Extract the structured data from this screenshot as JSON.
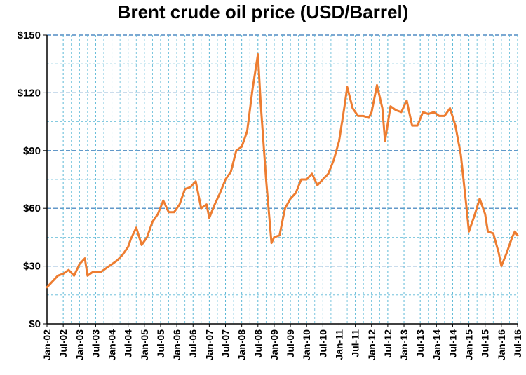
{
  "chart_data": {
    "type": "line",
    "title": "Brent crude oil price (USD/Barrel)",
    "xlabel": "",
    "ylabel": "",
    "x_range": [
      "2002-01",
      "2016-07"
    ],
    "ylim": [
      0,
      150
    ],
    "y_ticks": [
      0,
      30,
      60,
      90,
      120,
      150
    ],
    "y_tick_labels": [
      "$0",
      "$30",
      "$60",
      "$90",
      "$120",
      "$150"
    ],
    "x_tick_labels": [
      "Jan-02",
      "Jul-02",
      "Jan-03",
      "Jul-03",
      "Jan-04",
      "Jul-04",
      "Jan-05",
      "Jul-05",
      "Jan-06",
      "Jul-06",
      "Jan-07",
      "Jul-07",
      "Jan-08",
      "Jul-08",
      "Jan-09",
      "Jul-09",
      "Jan-10",
      "Jul-10",
      "Jan-11",
      "Jul-11",
      "Jan-12",
      "Jul-12",
      "Jan-13",
      "Jul-13",
      "Jan-14",
      "Jul-14",
      "Jan-15",
      "Jul-15",
      "Jan-16",
      "Jul-16"
    ],
    "grid": true,
    "colors": {
      "line": "#ED7D31",
      "major_grid": "#2E75B6",
      "minor_grid": "#5BB8D6",
      "axis": "#000000"
    },
    "series": [
      {
        "name": "",
        "x": [
          "2002-01",
          "2002-03",
          "2002-05",
          "2002-07",
          "2002-09",
          "2002-11",
          "2003-01",
          "2003-03",
          "2003-04",
          "2003-06",
          "2003-09",
          "2003-11",
          "2004-01",
          "2004-03",
          "2004-05",
          "2004-07",
          "2004-08",
          "2004-10",
          "2004-12",
          "2005-02",
          "2005-04",
          "2005-06",
          "2005-08",
          "2005-10",
          "2005-12",
          "2006-02",
          "2006-04",
          "2006-06",
          "2006-08",
          "2006-10",
          "2006-12",
          "2007-01",
          "2007-03",
          "2007-05",
          "2007-07",
          "2007-09",
          "2007-11",
          "2008-01",
          "2008-03",
          "2008-05",
          "2008-07",
          "2008-08",
          "2008-10",
          "2008-12",
          "2009-01",
          "2009-03",
          "2009-05",
          "2009-07",
          "2009-09",
          "2009-11",
          "2010-01",
          "2010-03",
          "2010-05",
          "2010-07",
          "2010-09",
          "2010-11",
          "2011-01",
          "2011-03",
          "2011-04",
          "2011-06",
          "2011-08",
          "2011-10",
          "2011-12",
          "2012-01",
          "2012-03",
          "2012-05",
          "2012-06",
          "2012-08",
          "2012-10",
          "2012-12",
          "2013-02",
          "2013-04",
          "2013-06",
          "2013-08",
          "2013-10",
          "2013-12",
          "2014-02",
          "2014-04",
          "2014-06",
          "2014-08",
          "2014-10",
          "2014-12",
          "2015-01",
          "2015-03",
          "2015-05",
          "2015-07",
          "2015-08",
          "2015-10",
          "2015-12",
          "2016-01",
          "2016-03",
          "2016-05",
          "2016-06",
          "2016-07"
        ],
        "values": [
          19,
          22,
          25,
          26,
          28,
          25,
          31,
          34,
          25,
          27,
          27,
          29,
          31,
          33,
          36,
          40,
          44,
          50,
          41,
          45,
          53,
          57,
          64,
          58,
          58,
          62,
          70,
          71,
          74,
          60,
          62,
          55,
          62,
          68,
          75,
          79,
          90,
          92,
          100,
          122,
          140,
          115,
          75,
          42,
          45,
          46,
          60,
          65,
          68,
          75,
          75,
          78,
          72,
          75,
          78,
          85,
          95,
          113,
          123,
          112,
          108,
          108,
          107,
          110,
          124,
          112,
          95,
          113,
          111,
          110,
          116,
          103,
          103,
          110,
          109,
          110,
          108,
          108,
          112,
          103,
          88,
          62,
          48,
          56,
          65,
          57,
          48,
          47,
          37,
          30,
          37,
          45,
          48,
          46
        ]
      }
    ]
  }
}
